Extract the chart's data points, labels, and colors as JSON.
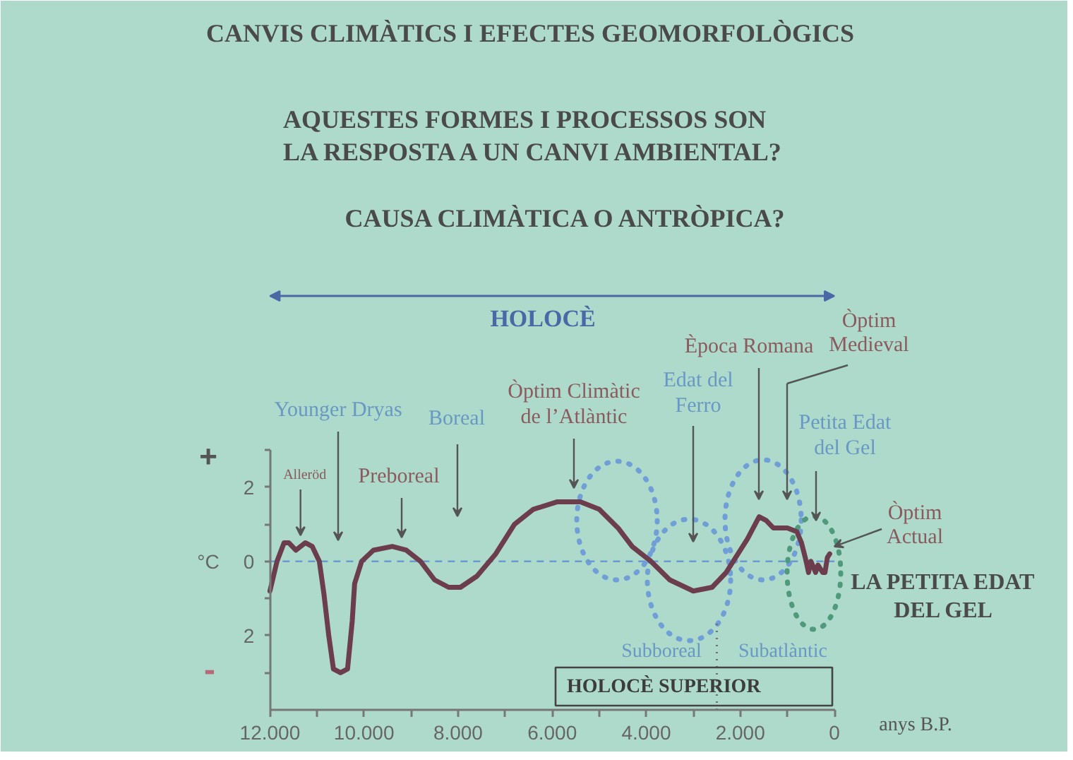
{
  "chart_data": {
    "type": "line",
    "title": "CANVIS CLIMÀTICS I EFECTES GEOMORFOLÒGICS",
    "subtitle": "AQUESTES FORMES I PROCESSOS SON\nLA RESPOSTA A UN CANVI AMBIENTAL?",
    "xlabel": "anys B.P.",
    "ylabel": "°C",
    "x": [
      12000,
      11850,
      11700,
      11600,
      11450,
      11250,
      11100,
      10950,
      10850,
      10750,
      10650,
      10500,
      10350,
      10250,
      10200,
      10050,
      9800,
      9400,
      9100,
      8800,
      8500,
      8200,
      7950,
      7600,
      7200,
      6800,
      6400,
      5900,
      5700,
      5400,
      5000,
      4600,
      4300,
      3900,
      3500,
      3000,
      2600,
      2300,
      2100,
      1850,
      1600,
      1450,
      1300,
      1000,
      800,
      700,
      600,
      550,
      500,
      400,
      350,
      250,
      200,
      150,
      100
    ],
    "series": [
      {
        "color": "#6b3d4d",
        "values": [
          -0.8,
          0.0,
          0.5,
          0.5,
          0.3,
          0.5,
          0.4,
          0.0,
          -0.9,
          -2.0,
          -2.9,
          -3.0,
          -2.9,
          -1.6,
          -0.6,
          0.0,
          0.3,
          0.4,
          0.3,
          0.0,
          -0.5,
          -0.7,
          -0.7,
          -0.4,
          0.2,
          1.0,
          1.4,
          1.6,
          1.6,
          1.6,
          1.4,
          0.9,
          0.4,
          0.0,
          -0.5,
          -0.8,
          -0.7,
          -0.3,
          0.1,
          0.6,
          1.2,
          1.1,
          0.9,
          0.9,
          0.8,
          0.5,
          0.0,
          -0.3,
          0.0,
          -0.3,
          -0.1,
          -0.3,
          -0.3,
          0.1,
          0.2
        ]
      }
    ],
    "xlim": [
      12000,
      0
    ],
    "xticks": [
      {
        "value": 12000,
        "label": "12.000"
      },
      {
        "value": 11000,
        "label": null
      },
      {
        "value": 10000,
        "label": "10.000"
      },
      {
        "value": 9000,
        "label": null
      },
      {
        "value": 8000,
        "label": "8.000"
      },
      {
        "value": 7000,
        "label": null
      },
      {
        "value": 6000,
        "label": "6.000"
      },
      {
        "value": 5000,
        "label": null
      },
      {
        "value": 4000,
        "label": "4.000"
      },
      {
        "value": 3000,
        "label": null
      },
      {
        "value": 2000,
        "label": "2.000"
      },
      {
        "value": 1000,
        "label": null
      },
      0
    ],
    "ylim": [
      -4,
      3
    ],
    "yticks": [
      {
        "value": -3,
        "label": null
      },
      {
        "value": -2,
        "label": "2"
      },
      {
        "value": -1,
        "label": null
      },
      0,
      {
        "value": 1,
        "label": null
      },
      2,
      {
        "value": 3,
        "label": null
      }
    ],
    "ref_lines": [
      {
        "axis": "y",
        "value": 0,
        "color": "#6a9ad0",
        "line_style": "dashed"
      },
      {
        "axis": "x",
        "value": 2500,
        "color": "#707070",
        "line_style": "dotted"
      }
    ],
    "annotations": [
      "CAUSA CLIMÀTICA O ANTRÒPICA?",
      "HOLOCÈ",
      "+",
      "-",
      "Subboreal",
      "Subatlàntic",
      "HOLOCÈ SUPERIOR",
      "LA PETITA EDAT\nDEL GEL",
      {
        "text": "Alleröd",
        "x": 11350,
        "y": 0.7
      },
      "Younger Dryas",
      "Preboreal",
      "Boreal",
      "Òptim Climàtic\nde l’Atlàntic",
      "Edat del\nFerro",
      "Època Romana",
      "Òptim\nMedieval",
      "Petita Edat\ndel Gel",
      {
        "text": "Òptim\nActual",
        "x": 0,
        "y": 0.4
      }
    ]
  }
}
